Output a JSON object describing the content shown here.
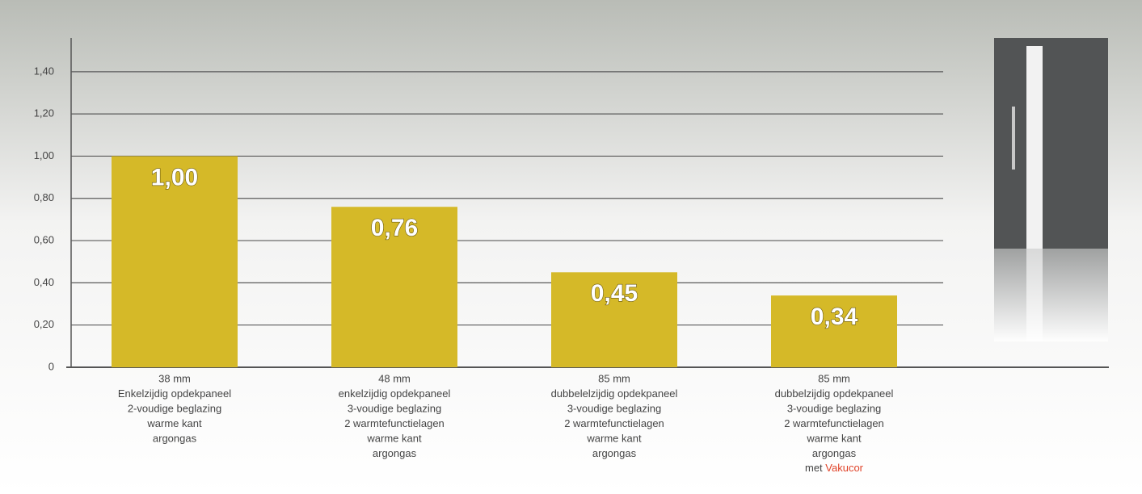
{
  "chart_data": {
    "type": "bar",
    "categories": [
      [
        "38 mm",
        "Enkelzijdig opdekpaneel",
        "2-voudige beglazing",
        "warme kant",
        "argongas"
      ],
      [
        "48 mm",
        "enkelzijdig opdekpaneel",
        "3-voudige beglazing",
        "2 warmtefunctielagen",
        "warme kant",
        "argongas"
      ],
      [
        "85 mm",
        "dubbelelzijdig opdekpaneel",
        "3-voudige beglazing",
        "2 warmtefunctielagen",
        "warme kant",
        "argongas"
      ],
      [
        "85 mm",
        "dubbelzijdig opdekpaneel",
        "3-voudige beglazing",
        "2 warmtefunctielagen",
        "warme kant",
        "argongas",
        [
          "met",
          "Vakucor"
        ]
      ]
    ],
    "values": [
      1.0,
      0.76,
      0.45,
      0.34
    ],
    "value_labels": [
      "1,00",
      "0,76",
      "0,45",
      "0,34"
    ],
    "color": "#d5b928",
    "highlight_color": "#e0442a",
    "ylim": [
      0,
      1.56
    ],
    "yticks": [
      0,
      {
        "value": 0.2,
        "label": "0,20"
      },
      {
        "value": 0.4,
        "label": "0,40"
      },
      {
        "value": 0.6,
        "label": "0,60"
      },
      {
        "value": 0.8,
        "label": "0,80"
      },
      {
        "value": 1.0,
        "label": "1,00"
      },
      {
        "value": 1.2,
        "label": "1,20"
      },
      {
        "value": 1.4,
        "label": "1,40"
      }
    ],
    "grid": true
  }
}
